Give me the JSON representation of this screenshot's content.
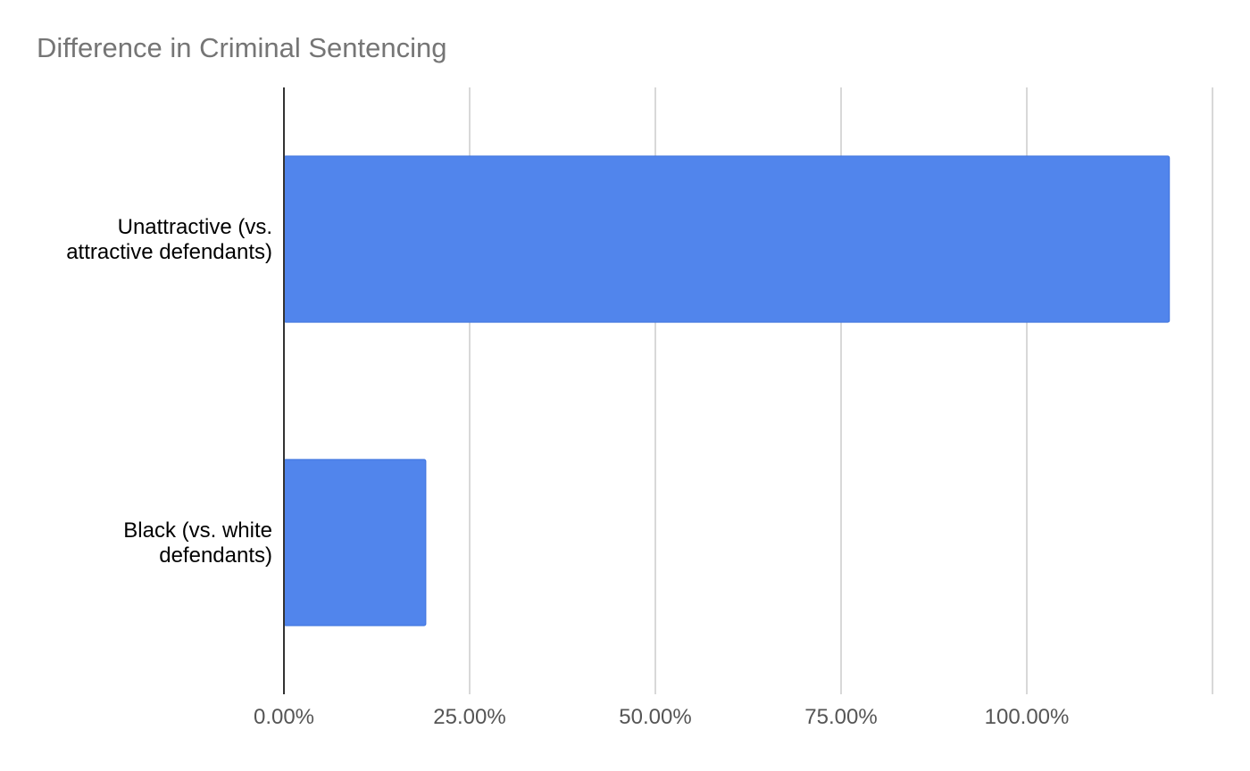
{
  "chart_data": {
    "type": "bar",
    "orientation": "horizontal",
    "title": "Difference in Criminal Sentencing",
    "xlabel": "",
    "ylabel": "",
    "categories": [
      [
        "Unattractive (vs.",
        "attractive defendants)"
      ],
      [
        "Black (vs. white",
        "defendants)"
      ]
    ],
    "values": [
      119.2,
      19.1
    ],
    "value_format": "percent",
    "xlim": [
      0,
      125
    ],
    "xticks": [
      0,
      25,
      50,
      75,
      100
    ],
    "xtick_labels": [
      "0.00%",
      "25.00%",
      "50.00%",
      "75.00%",
      "100.00%"
    ],
    "grid": "vertical",
    "legend": "none",
    "colors": {
      "bar": "#5185EC",
      "bar_edge": "#3f73dd",
      "grid": "#cccccc",
      "axis": "#333333",
      "title": "#757575",
      "tick_text": "#555555",
      "category_text": "#000000"
    }
  }
}
